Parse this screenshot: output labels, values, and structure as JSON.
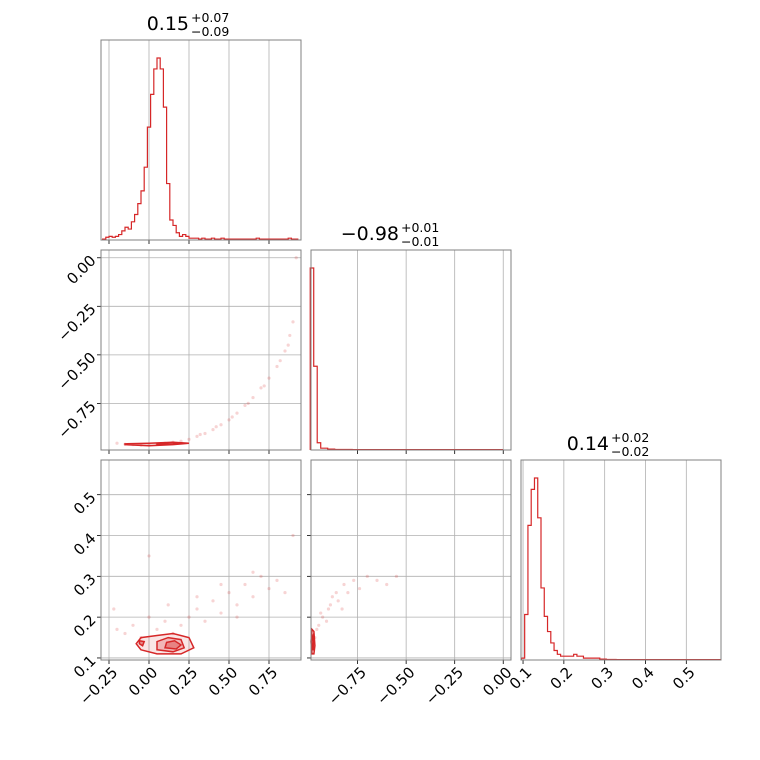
{
  "colors": {
    "series": "#d62728",
    "grid": "#b0b0b0",
    "frame": "#808080"
  },
  "chart_data": {
    "type": "corner",
    "parameters": [
      {
        "title_value": "0.15",
        "title_plus": "+0.07",
        "title_minus": "−0.09",
        "range": [
          -0.3,
          0.95
        ],
        "ticks": [
          -0.25,
          0.0,
          0.25,
          0.5,
          0.75
        ],
        "tick_labels": [
          "−0.25",
          "0.00",
          "0.25",
          "0.50",
          "0.75"
        ]
      },
      {
        "title_value": "−0.98",
        "title_plus": "+0.01",
        "title_minus": "−0.01",
        "range": [
          -0.99,
          0.04
        ],
        "ticks": [
          -0.75,
          -0.5,
          -0.25,
          0.0
        ],
        "tick_labels": [
          "−0.75",
          "−0.50",
          "−0.25",
          "0.00"
        ]
      },
      {
        "title_value": "0.14",
        "title_plus": "+0.02",
        "title_minus": "−0.02",
        "range": [
          0.095,
          0.585
        ],
        "ticks": [
          0.1,
          0.2,
          0.3,
          0.4,
          0.5
        ],
        "tick_labels": [
          "0.1",
          "0.2",
          "0.3",
          "0.4",
          "0.5"
        ]
      }
    ],
    "histograms": [
      {
        "param": 0,
        "bin_centers": [
          -0.28,
          -0.26,
          -0.24,
          -0.22,
          -0.2,
          -0.18,
          -0.16,
          -0.14,
          -0.12,
          -0.1,
          -0.08,
          -0.06,
          -0.04,
          -0.02,
          0.0,
          0.02,
          0.04,
          0.06,
          0.08,
          0.1,
          0.12,
          0.14,
          0.16,
          0.18,
          0.2,
          0.22,
          0.24,
          0.26,
          0.28,
          0.3,
          0.32,
          0.34,
          0.36,
          0.38,
          0.4,
          0.42,
          0.44,
          0.46,
          0.48,
          0.5,
          0.52,
          0.54,
          0.56,
          0.58,
          0.6,
          0.62,
          0.64,
          0.66,
          0.68,
          0.7,
          0.72,
          0.74,
          0.76,
          0.78,
          0.8,
          0.82,
          0.84,
          0.86,
          0.88,
          0.9,
          0.92
        ],
        "counts": [
          0.5,
          1.5,
          2,
          1.5,
          2,
          3,
          5,
          7,
          6,
          10,
          14,
          20,
          27,
          40,
          62,
          80,
          94,
          100,
          94,
          73,
          31,
          11,
          8,
          4,
          2,
          3,
          2,
          1,
          1,
          1,
          0.5,
          1,
          0.5,
          0.5,
          1,
          0.5,
          0.5,
          1,
          0.5,
          0.5,
          0.5,
          0.5,
          0.5,
          0.5,
          0.5,
          0.5,
          0.5,
          0.5,
          1,
          0.5,
          0.5,
          0.5,
          0.5,
          0.5,
          0.5,
          0.5,
          0.5,
          0.5,
          1,
          0.5,
          0.5
        ]
      },
      {
        "param": 1,
        "bin_centers": [
          -0.985,
          -0.967,
          -0.949,
          -0.931,
          -0.913,
          -0.895,
          -0.877,
          -0.859,
          -0.841,
          -0.823,
          -0.805,
          -0.787,
          -0.769,
          -0.751,
          -0.733,
          -0.715,
          -0.697,
          -0.679,
          -0.661,
          -0.643,
          -0.625,
          -0.607,
          -0.589,
          -0.571,
          -0.553,
          -0.535,
          -0.517,
          -0.499,
          -0.481,
          -0.463,
          -0.445,
          -0.427,
          -0.409,
          -0.391,
          -0.373,
          -0.355,
          -0.337,
          -0.319,
          -0.301,
          -0.283,
          -0.265,
          -0.247,
          -0.229,
          -0.211,
          -0.193,
          -0.175,
          -0.157,
          -0.139,
          -0.121,
          -0.103,
          -0.085,
          -0.067,
          -0.049,
          -0.031,
          -0.013
        ],
        "counts": [
          100,
          46,
          4,
          1,
          1,
          0.5,
          0.5,
          0.3,
          0.3,
          0.3,
          0.3,
          0.3,
          0.2,
          0.2,
          0.2,
          0.2,
          0.2,
          0.2,
          0.2,
          0.2,
          0.2,
          0.2,
          0.2,
          0.2,
          0.2,
          0.2,
          0.2,
          0.2,
          0.2,
          0.2,
          0.2,
          0.2,
          0.2,
          0.2,
          0.2,
          0.2,
          0.2,
          0.2,
          0.2,
          0.2,
          0.2,
          0.2,
          0.2,
          0.2,
          0.2,
          0.2,
          0.2,
          0.2,
          0.2,
          0.2,
          0.2,
          0.2,
          0.2,
          0.2,
          0.2
        ]
      },
      {
        "param": 2,
        "bin_centers": [
          0.1,
          0.108,
          0.116,
          0.124,
          0.132,
          0.14,
          0.148,
          0.156,
          0.164,
          0.172,
          0.18,
          0.188,
          0.196,
          0.204,
          0.212,
          0.22,
          0.228,
          0.236,
          0.244,
          0.252,
          0.26,
          0.268,
          0.276,
          0.284,
          0.292,
          0.3,
          0.308,
          0.316,
          0.324,
          0.332,
          0.34,
          0.348,
          0.356,
          0.364,
          0.372,
          0.38,
          0.388,
          0.396,
          0.404,
          0.412,
          0.42,
          0.428,
          0.436,
          0.444,
          0.452,
          0.46,
          0.468,
          0.476,
          0.484,
          0.492,
          0.5,
          0.508,
          0.516,
          0.524,
          0.532,
          0.54,
          0.548,
          0.556,
          0.564,
          0.572,
          0.58
        ],
        "counts": [
          1,
          24,
          71,
          90,
          96,
          75,
          38,
          23,
          15,
          9,
          5,
          3,
          2,
          2,
          2,
          2,
          3,
          2,
          2,
          1,
          1,
          1,
          1,
          1,
          0.5,
          0.5,
          0.3,
          0.3,
          0.3,
          0.2,
          0.2,
          0.2,
          0.2,
          0.2,
          0.2,
          0.2,
          0.2,
          0.2,
          0.2,
          0.2,
          0.2,
          0.2,
          0.2,
          0.2,
          0.2,
          0.2,
          0.2,
          0.2,
          0.2,
          0.2,
          0.2,
          0.2,
          0.2,
          0.2,
          0.2,
          0.2,
          0.2,
          0.2,
          0.2,
          0.2,
          0.2
        ]
      }
    ],
    "scatter_panels": [
      {
        "x_param": 0,
        "y_param": 1,
        "points": [
          [
            -0.2,
            -0.955
          ],
          [
            -0.15,
            -0.96
          ],
          [
            -0.1,
            -0.962
          ],
          [
            -0.05,
            -0.965
          ],
          [
            0.0,
            -0.965
          ],
          [
            0.05,
            -0.96
          ],
          [
            0.1,
            -0.955
          ],
          [
            0.15,
            -0.95
          ],
          [
            0.2,
            -0.945
          ],
          [
            0.25,
            -0.935
          ],
          [
            0.3,
            -0.92
          ],
          [
            0.35,
            -0.905
          ],
          [
            0.4,
            -0.885
          ],
          [
            0.45,
            -0.86
          ],
          [
            0.5,
            -0.835
          ],
          [
            0.55,
            -0.8
          ],
          [
            0.6,
            -0.76
          ],
          [
            0.65,
            -0.72
          ],
          [
            0.7,
            -0.67
          ],
          [
            0.75,
            -0.62
          ],
          [
            0.8,
            -0.56
          ],
          [
            0.85,
            -0.48
          ],
          [
            0.88,
            -0.4
          ],
          [
            0.9,
            -0.33
          ],
          [
            0.92,
            0.0
          ],
          [
            0.32,
            -0.91
          ],
          [
            0.42,
            -0.87
          ],
          [
            0.52,
            -0.82
          ],
          [
            0.62,
            -0.75
          ],
          [
            0.72,
            -0.66
          ],
          [
            0.82,
            -0.53
          ],
          [
            0.87,
            -0.45
          ]
        ],
        "contours": [
          [
            [
              -0.15,
              -0.962
            ],
            [
              0.0,
              -0.968
            ],
            [
              0.15,
              -0.962
            ],
            [
              0.25,
              -0.955
            ],
            [
              0.15,
              -0.95
            ],
            [
              0.0,
              -0.955
            ],
            [
              -0.15,
              -0.958
            ]
          ],
          [
            [
              0.05,
              -0.962
            ],
            [
              0.15,
              -0.96
            ],
            [
              0.22,
              -0.955
            ],
            [
              0.15,
              -0.952
            ],
            [
              0.05,
              -0.956
            ]
          ]
        ]
      },
      {
        "x_param": 0,
        "y_param": 2,
        "points": [
          [
            -0.2,
            0.17
          ],
          [
            -0.15,
            0.16
          ],
          [
            -0.1,
            0.18
          ],
          [
            -0.05,
            0.15
          ],
          [
            0.0,
            0.2
          ],
          [
            0.05,
            0.17
          ],
          [
            0.1,
            0.19
          ],
          [
            0.15,
            0.16
          ],
          [
            0.2,
            0.18
          ],
          [
            0.25,
            0.2
          ],
          [
            0.3,
            0.22
          ],
          [
            0.35,
            0.19
          ],
          [
            0.4,
            0.24
          ],
          [
            0.45,
            0.21
          ],
          [
            0.5,
            0.26
          ],
          [
            0.55,
            0.23
          ],
          [
            0.6,
            0.28
          ],
          [
            0.65,
            0.25
          ],
          [
            0.7,
            0.3
          ],
          [
            0.75,
            0.27
          ],
          [
            0.8,
            0.29
          ],
          [
            0.85,
            0.26
          ],
          [
            0.9,
            0.4
          ],
          [
            0.0,
            0.35
          ],
          [
            0.3,
            0.25
          ],
          [
            0.45,
            0.28
          ],
          [
            0.65,
            0.31
          ],
          [
            -0.22,
            0.22
          ],
          [
            0.12,
            0.23
          ],
          [
            0.55,
            0.2
          ]
        ],
        "contours": [
          [
            [
              -0.05,
              0.12
            ],
            [
              0.05,
              0.11
            ],
            [
              0.2,
              0.11
            ],
            [
              0.28,
              0.125
            ],
            [
              0.25,
              0.15
            ],
            [
              0.15,
              0.16
            ],
            [
              0.05,
              0.155
            ],
            [
              -0.05,
              0.15
            ],
            [
              -0.08,
              0.135
            ]
          ],
          [
            [
              0.05,
              0.12
            ],
            [
              0.15,
              0.115
            ],
            [
              0.22,
              0.125
            ],
            [
              0.2,
              0.145
            ],
            [
              0.12,
              0.15
            ],
            [
              0.05,
              0.14
            ]
          ],
          [
            [
              0.1,
              0.125
            ],
            [
              0.17,
              0.122
            ],
            [
              0.2,
              0.132
            ],
            [
              0.16,
              0.142
            ],
            [
              0.11,
              0.138
            ]
          ],
          [
            [
              -0.06,
              0.135
            ],
            [
              -0.04,
              0.13
            ],
            [
              -0.03,
              0.14
            ],
            [
              -0.06,
              0.142
            ]
          ]
        ]
      },
      {
        "x_param": 1,
        "y_param": 2,
        "points": [
          [
            -0.97,
            0.15
          ],
          [
            -0.95,
            0.18
          ],
          [
            -0.93,
            0.2
          ],
          [
            -0.9,
            0.22
          ],
          [
            -0.88,
            0.25
          ],
          [
            -0.85,
            0.24
          ],
          [
            -0.82,
            0.28
          ],
          [
            -0.8,
            0.26
          ],
          [
            -0.77,
            0.29
          ],
          [
            -0.74,
            0.27
          ],
          [
            -0.7,
            0.3
          ],
          [
            -0.65,
            0.29
          ],
          [
            -0.6,
            0.28
          ],
          [
            -0.55,
            0.3
          ],
          [
            -0.96,
            0.17
          ],
          [
            -0.94,
            0.21
          ],
          [
            -0.91,
            0.19
          ],
          [
            -0.89,
            0.23
          ],
          [
            -0.86,
            0.26
          ],
          [
            -0.83,
            0.22
          ]
        ],
        "contours": [
          [
            [
              -0.985,
              0.11
            ],
            [
              -0.975,
              0.11
            ],
            [
              -0.97,
              0.13
            ],
            [
              -0.975,
              0.165
            ],
            [
              -0.985,
              0.17
            ],
            [
              -0.99,
              0.14
            ]
          ],
          [
            [
              -0.984,
              0.12
            ],
            [
              -0.978,
              0.12
            ],
            [
              -0.976,
              0.14
            ],
            [
              -0.98,
              0.155
            ],
            [
              -0.985,
              0.15
            ]
          ]
        ]
      }
    ]
  }
}
